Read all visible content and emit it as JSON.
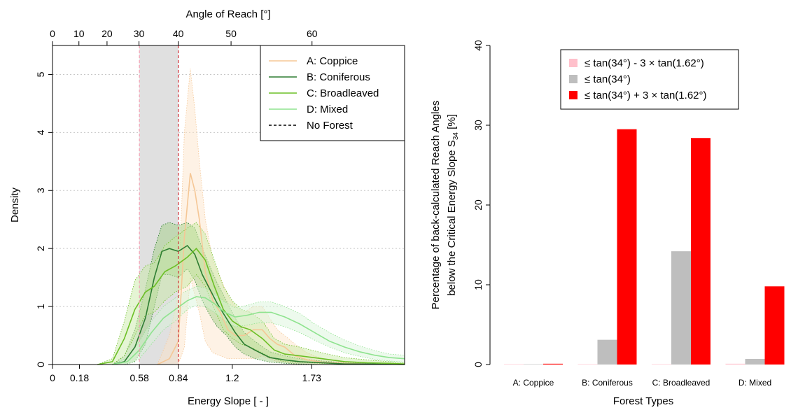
{
  "chart_data": [
    {
      "type": "area",
      "xlabel": "Energy Slope [ - ]",
      "ylabel": "Density",
      "top_axis_label": "Angle of Reach [°]",
      "xlim": [
        0,
        2.35
      ],
      "ylim": [
        0,
        5.5
      ],
      "x_ticks": [
        0,
        0.18,
        0.58,
        0.84,
        1.2,
        1.73
      ],
      "x_tick_labels": [
        "0",
        "0.18",
        "0.58",
        "0.84",
        "1.2",
        "1.73"
      ],
      "y_ticks": [
        0,
        1,
        2,
        3,
        4,
        5
      ],
      "top_ticks": [
        0,
        10,
        20,
        30,
        40,
        50,
        60
      ],
      "grid": "dotted horizontal",
      "legend_position": "top-right",
      "shaded_band": [
        0.58,
        0.84
      ],
      "reference_lines": [
        {
          "name": "No Forest",
          "x": 0.84,
          "color": "#d0303a",
          "style": "dashed"
        },
        {
          "x": 0.58,
          "color": "#f4a0b4",
          "style": "dashed"
        }
      ],
      "series": [
        {
          "name": "A: Coppice",
          "color": "#f5c796",
          "fill": "#fde2c6",
          "x": [
            0.7,
            0.78,
            0.84,
            0.88,
            0.92,
            0.95,
            0.98,
            1.02,
            1.07,
            1.12,
            1.17,
            1.22,
            1.28,
            1.34,
            1.4,
            1.45,
            1.5,
            1.55,
            1.62,
            1.7,
            1.8,
            1.95,
            2.1
          ],
          "y": [
            0,
            0.1,
            0.4,
            2.2,
            3.3,
            3.0,
            2.5,
            1.6,
            1.1,
            0.9,
            0.6,
            0.5,
            0.5,
            0.6,
            0.6,
            0.45,
            0.35,
            0.3,
            0.15,
            0.08,
            0.04,
            0.02,
            0.01
          ],
          "lower": [
            0,
            0,
            0,
            0.3,
            1.5,
            1.2,
            0.9,
            0.4,
            0.2,
            0.15,
            0.1,
            0.1,
            0.1,
            0.1,
            0.15,
            0.1,
            0.05,
            0.05,
            0,
            0,
            0,
            0,
            0
          ],
          "upper": [
            0,
            0.5,
            1.2,
            4.0,
            5.1,
            4.4,
            3.5,
            2.5,
            1.8,
            1.5,
            1.2,
            1.0,
            0.9,
            1.0,
            1.0,
            0.8,
            0.6,
            0.5,
            0.35,
            0.2,
            0.1,
            0.05,
            0.03
          ]
        },
        {
          "name": "B: Coniferous",
          "color": "#2e7d32",
          "fill": "#9ccc7c",
          "x": [
            0.4,
            0.48,
            0.55,
            0.62,
            0.68,
            0.73,
            0.78,
            0.84,
            0.9,
            0.95,
            1.0,
            1.05,
            1.1,
            1.16,
            1.22,
            1.28,
            1.35,
            1.45,
            1.55,
            1.65,
            1.8,
            1.95,
            2.1,
            2.35
          ],
          "y": [
            0,
            0.05,
            0.3,
            0.8,
            1.5,
            1.95,
            2.0,
            1.95,
            2.05,
            1.9,
            1.55,
            1.3,
            1.05,
            0.8,
            0.55,
            0.35,
            0.25,
            0.12,
            0.08,
            0.05,
            0.03,
            0.01,
            0.01,
            0
          ],
          "lower": [
            0,
            0,
            0.05,
            0.35,
            1.0,
            1.55,
            1.55,
            1.5,
            1.65,
            1.45,
            1.1,
            0.85,
            0.65,
            0.5,
            0.3,
            0.18,
            0.1,
            0.04,
            0.02,
            0.01,
            0,
            0,
            0,
            0
          ],
          "upper": [
            0,
            0.15,
            0.6,
            1.3,
            2.0,
            2.4,
            2.45,
            2.4,
            2.45,
            2.35,
            2.0,
            1.7,
            1.4,
            1.1,
            0.8,
            0.55,
            0.4,
            0.22,
            0.15,
            0.1,
            0.06,
            0.03,
            0.02,
            0
          ]
        },
        {
          "name": "C: Broadleaved",
          "color": "#6cbf26",
          "fill": "#c5e8a0",
          "x": [
            0.3,
            0.4,
            0.48,
            0.55,
            0.62,
            0.68,
            0.75,
            0.82,
            0.9,
            0.96,
            1.02,
            1.08,
            1.14,
            1.2,
            1.26,
            1.32,
            1.4,
            1.48,
            1.55,
            1.65,
            1.8,
            1.95,
            2.1,
            2.25,
            2.35
          ],
          "y": [
            0,
            0.05,
            0.45,
            0.95,
            1.25,
            1.35,
            1.6,
            1.7,
            1.85,
            2.0,
            1.8,
            1.35,
            0.95,
            0.75,
            0.65,
            0.6,
            0.45,
            0.25,
            0.18,
            0.15,
            0.1,
            0.05,
            0.03,
            0.02,
            0.01
          ],
          "lower": [
            0,
            0,
            0.15,
            0.5,
            0.85,
            0.9,
            1.1,
            1.25,
            1.35,
            1.55,
            1.35,
            0.95,
            0.6,
            0.45,
            0.35,
            0.3,
            0.2,
            0.1,
            0.05,
            0.04,
            0.02,
            0.01,
            0,
            0,
            0
          ],
          "upper": [
            0,
            0.1,
            0.75,
            1.45,
            1.7,
            1.75,
            2.05,
            2.2,
            2.35,
            2.45,
            2.25,
            1.8,
            1.35,
            1.1,
            0.95,
            0.9,
            0.75,
            0.45,
            0.35,
            0.3,
            0.2,
            0.12,
            0.08,
            0.05,
            0.03
          ]
        },
        {
          "name": "D: Mixed",
          "color": "#8fe38f",
          "fill": "#d6f5d6",
          "x": [
            0.4,
            0.5,
            0.58,
            0.66,
            0.74,
            0.82,
            0.9,
            0.96,
            1.02,
            1.08,
            1.15,
            1.22,
            1.3,
            1.38,
            1.46,
            1.55,
            1.65,
            1.75,
            1.85,
            1.95,
            2.05,
            2.15,
            2.25,
            2.35
          ],
          "y": [
            0,
            0.05,
            0.25,
            0.55,
            0.8,
            0.95,
            1.1,
            1.17,
            1.15,
            1.05,
            0.9,
            0.82,
            0.85,
            0.9,
            0.9,
            0.82,
            0.7,
            0.55,
            0.4,
            0.3,
            0.22,
            0.16,
            0.12,
            0.1
          ],
          "lower": [
            0,
            0,
            0.1,
            0.35,
            0.6,
            0.75,
            0.95,
            1.02,
            1.0,
            0.9,
            0.75,
            0.65,
            0.68,
            0.72,
            0.72,
            0.65,
            0.55,
            0.42,
            0.3,
            0.2,
            0.14,
            0.09,
            0.06,
            0.04
          ],
          "upper": [
            0,
            0.12,
            0.4,
            0.75,
            1.0,
            1.15,
            1.28,
            1.35,
            1.32,
            1.22,
            1.08,
            0.98,
            1.02,
            1.08,
            1.08,
            1.0,
            0.88,
            0.7,
            0.55,
            0.42,
            0.32,
            0.24,
            0.18,
            0.16
          ]
        }
      ],
      "legend_extra": [
        {
          "name": "No Forest",
          "style": "dashed",
          "color": "#000000"
        }
      ]
    },
    {
      "type": "bar",
      "xlabel": "Forest Types",
      "ylabel": "Percentage of back-calculated Reach Angles",
      "ylabel2": "below the Critical Energy Slope S",
      "ylabel2_sub": "34",
      "ylabel2_suffix": " [%]",
      "ylim": [
        0,
        40
      ],
      "y_ticks": [
        0,
        10,
        20,
        30,
        40
      ],
      "legend_position": "top",
      "categories": [
        "A: Coppice",
        "B: Coniferous",
        "C: Broadleaved",
        "D: Mixed"
      ],
      "series": [
        {
          "name": "≤ tan(34°) - 3 × tan(1.62°)",
          "color": "#ffc0cb",
          "values": [
            0.05,
            0.05,
            0.05,
            0.1
          ]
        },
        {
          "name": "≤ tan(34°)",
          "color": "#bebebe",
          "values": [
            0.05,
            3.1,
            14.2,
            0.7
          ]
        },
        {
          "name": "≤ tan(34°) + 3 × tan(1.62°)",
          "color": "#ff0000",
          "values": [
            0.1,
            29.5,
            28.4,
            9.8
          ]
        }
      ]
    }
  ]
}
